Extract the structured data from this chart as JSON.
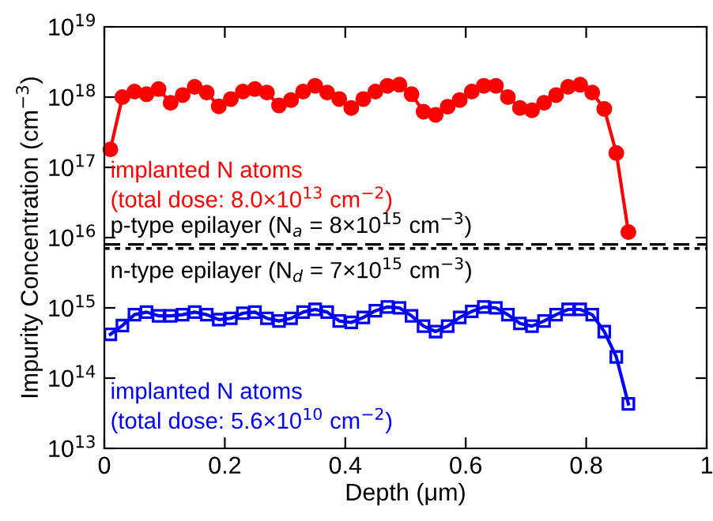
{
  "chart_data": {
    "type": "line",
    "xlabel": "Depth (μm)",
    "ylabel": "Impurity Concentration (cm$^{−3}$)",
    "log": "y",
    "xlim": [
      0,
      1
    ],
    "xticks": [
      0,
      0.2,
      0.4,
      0.6,
      0.8,
      1
    ],
    "ylim": [
      10000000000000.0,
      1e+19
    ],
    "yticks": [
      {
        "value": 10000000000000.0,
        "label": "10$^{13}$"
      },
      {
        "value": 100000000000000.0,
        "label": "10$^{14}$"
      },
      {
        "value": 1000000000000000.0,
        "label": "10$^{15}$"
      },
      {
        "value": 1e+16,
        "label": "10$^{16}$"
      },
      {
        "value": 1e+17,
        "label": "10$^{17}$"
      },
      {
        "value": 1e+18,
        "label": "10$^{18}$"
      },
      {
        "value": 1e+19,
        "label": "10$^{19}$"
      }
    ],
    "grid": false,
    "annotations": [
      "p-type epilayer (N$_{a}$ = 8×10$^{15}$ cm$^{−3}$)",
      "n-type epilayer (N$_{d}$ = 7×10$^{15}$ cm$^{−3}$)"
    ],
    "series": [
      {
        "name": "implanted N atoms\n(total dose: 8.0×10$^{13}$ cm$^{−2}$)",
        "color": "#ff0000",
        "marker": "circle",
        "x": [
          0.01,
          0.03,
          0.05,
          0.07,
          0.09,
          0.11,
          0.13,
          0.15,
          0.17,
          0.19,
          0.21,
          0.23,
          0.25,
          0.27,
          0.29,
          0.31,
          0.33,
          0.35,
          0.37,
          0.39,
          0.41,
          0.43,
          0.45,
          0.47,
          0.49,
          0.51,
          0.53,
          0.55,
          0.57,
          0.59,
          0.61,
          0.63,
          0.65,
          0.67,
          0.69,
          0.71,
          0.73,
          0.75,
          0.77,
          0.79,
          0.81,
          0.83,
          0.85,
          0.87
        ],
        "values": [
          1.8e+17,
          1e+18,
          1.2e+18,
          1.1e+18,
          1.3e+18,
          8.3e+17,
          1.07e+18,
          1.4e+18,
          1.16e+18,
          7.4e+17,
          9.4e+17,
          1.2e+18,
          1.3e+18,
          1.16e+18,
          7.6e+17,
          9.1e+17,
          1.2e+18,
          1.45e+18,
          1.16e+18,
          9.4e+17,
          7e+17,
          9.4e+17,
          1.2e+18,
          1.45e+18,
          1.5e+18,
          1.1e+18,
          6.2e+17,
          5.6e+17,
          7.3e+17,
          9.1e+17,
          1.2e+18,
          1.45e+18,
          1.45e+18,
          1e+18,
          7e+17,
          6.5e+17,
          8.3e+17,
          1.07e+18,
          1.4e+18,
          1.5e+18,
          1.16e+18,
          6.8e+17,
          1.6e+17,
          1.2e+16
        ]
      },
      {
        "name": "implanted N atoms\n(total dose: 5.6×10$^{10}$ cm$^{−2}$)",
        "color": "#0000ff",
        "marker": "square",
        "x": [
          0.01,
          0.03,
          0.05,
          0.07,
          0.09,
          0.11,
          0.13,
          0.15,
          0.17,
          0.19,
          0.21,
          0.23,
          0.25,
          0.27,
          0.29,
          0.31,
          0.33,
          0.35,
          0.37,
          0.39,
          0.41,
          0.43,
          0.45,
          0.47,
          0.49,
          0.51,
          0.53,
          0.55,
          0.57,
          0.59,
          0.61,
          0.63,
          0.65,
          0.67,
          0.69,
          0.71,
          0.73,
          0.75,
          0.77,
          0.79,
          0.81,
          0.83,
          0.85,
          0.87
        ],
        "values": [
          420000000000000.0,
          560000000000000.0,
          800000000000000.0,
          870000000000000.0,
          770000000000000.0,
          770000000000000.0,
          800000000000000.0,
          870000000000000.0,
          800000000000000.0,
          680000000000000.0,
          710000000000000.0,
          840000000000000.0,
          870000000000000.0,
          710000000000000.0,
          650000000000000.0,
          710000000000000.0,
          870000000000000.0,
          950000000000000.0,
          870000000000000.0,
          650000000000000.0,
          620000000000000.0,
          730000000000000.0,
          910000000000000.0,
          1030000000000000.0,
          1000000000000000.0,
          770000000000000.0,
          550000000000000.0,
          460000000000000.0,
          550000000000000.0,
          730000000000000.0,
          890000000000000.0,
          1030000000000000.0,
          1000000000000000.0,
          800000000000000.0,
          600000000000000.0,
          550000000000000.0,
          650000000000000.0,
          800000000000000.0,
          950000000000000.0,
          950000000000000.0,
          800000000000000.0,
          460000000000000.0,
          200000000000000.0,
          43000000000000.0
        ]
      }
    ],
    "ref_lines": [
      {
        "axis": "y",
        "value": 8000000000000000.0,
        "color": "#000000",
        "line_style": "dashed"
      },
      {
        "axis": "y",
        "value": 7000000000000000.0,
        "color": "#000000",
        "line_style": "dotted"
      }
    ]
  }
}
